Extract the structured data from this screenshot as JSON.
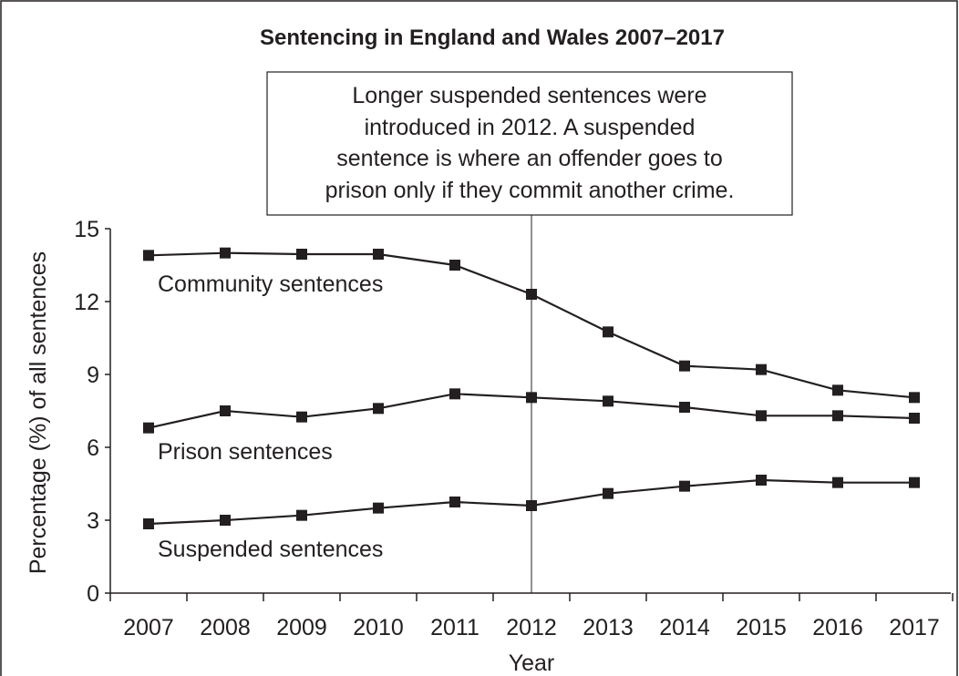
{
  "chart_data": {
    "type": "line",
    "title": "Sentencing in England and Wales 2007–2017",
    "xlabel": "Year",
    "ylabel": "Percentage (%) of all sentences",
    "x": [
      "2007",
      "2008",
      "2009",
      "2010",
      "2011",
      "2012",
      "2013",
      "2014",
      "2015",
      "2016",
      "2017"
    ],
    "ylim": [
      0,
      15
    ],
    "yticks": [
      "0",
      "3",
      "6",
      "9",
      "12",
      "15"
    ],
    "grid": false,
    "series": [
      {
        "name": "Community sentences",
        "values": [
          13.9,
          14.0,
          13.95,
          13.95,
          13.5,
          12.3,
          10.75,
          9.35,
          9.2,
          8.35,
          8.05
        ]
      },
      {
        "name": "Prison sentences",
        "values": [
          6.8,
          7.5,
          7.25,
          7.6,
          8.2,
          8.05,
          7.9,
          7.65,
          7.3,
          7.3,
          7.2
        ]
      },
      {
        "name": "Suspended sentences",
        "values": [
          2.85,
          3.0,
          3.2,
          3.5,
          3.75,
          3.6,
          4.1,
          4.4,
          4.65,
          4.55,
          4.55
        ]
      }
    ],
    "reference_line": {
      "x": "2012"
    },
    "annotation": {
      "lines": [
        "Longer suspended sentences were",
        "introduced in 2012. A suspended",
        "sentence is where an offender goes to",
        "prison only if they commit another crime."
      ]
    },
    "colors": {
      "ink": "#231f20",
      "background": "#ffffff"
    }
  }
}
